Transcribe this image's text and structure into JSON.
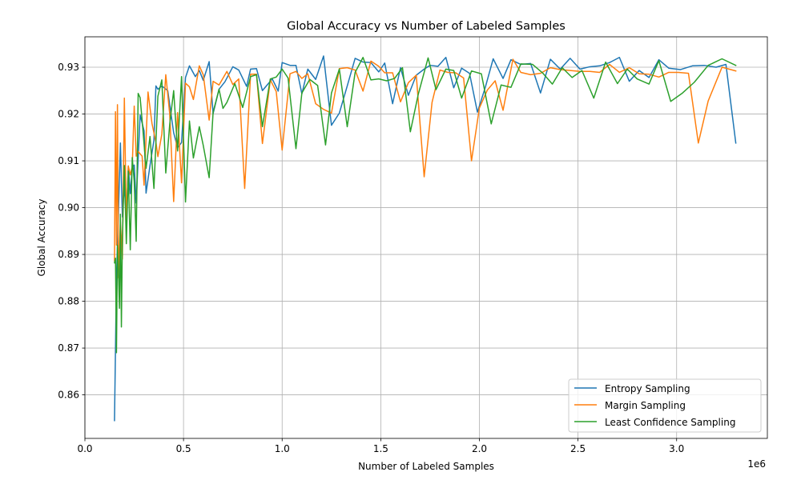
{
  "chart_data": {
    "type": "line",
    "title": "Global Accuracy vs Number of Labeled Samples",
    "xlabel": "Number of Labeled Samples",
    "ylabel": "Global Accuracy",
    "x_multiplier_label": "1e6",
    "xlim": [
      0,
      3.46
    ],
    "ylim": [
      0.8507,
      0.9365
    ],
    "x_ticks": [
      0.0,
      0.5,
      1.0,
      1.5,
      2.0,
      2.5,
      3.0
    ],
    "x_tick_labels": [
      "0.0",
      "0.5",
      "1.0",
      "1.5",
      "2.0",
      "2.5",
      "3.0"
    ],
    "y_ticks": [
      0.86,
      0.87,
      0.88,
      0.89,
      0.9,
      0.91,
      0.92,
      0.93
    ],
    "y_tick_labels": [
      "0.86",
      "0.87",
      "0.88",
      "0.89",
      "0.90",
      "0.91",
      "0.92",
      "0.93"
    ],
    "grid": true,
    "legend_position": "lower-right",
    "series": [
      {
        "name": "Entropy Sampling",
        "color": "#1f77b4",
        "points": [
          [
            0.15,
            0.8545
          ],
          [
            0.16,
            0.885
          ],
          [
            0.17,
            0.899
          ],
          [
            0.18,
            0.9138
          ],
          [
            0.19,
            0.898
          ],
          [
            0.2,
            0.9048
          ],
          [
            0.21,
            0.897
          ],
          [
            0.22,
            0.9089
          ],
          [
            0.23,
            0.903
          ],
          [
            0.24,
            0.9086
          ],
          [
            0.25,
            0.9091
          ],
          [
            0.26,
            0.901
          ],
          [
            0.28,
            0.9198
          ],
          [
            0.3,
            0.9164
          ],
          [
            0.31,
            0.9031
          ],
          [
            0.33,
            0.909
          ],
          [
            0.35,
            0.9144
          ],
          [
            0.36,
            0.926
          ],
          [
            0.37,
            0.9253
          ],
          [
            0.39,
            0.926
          ],
          [
            0.42,
            0.925
          ],
          [
            0.45,
            0.916
          ],
          [
            0.47,
            0.9128
          ],
          [
            0.49,
            0.9139
          ],
          [
            0.51,
            0.9278
          ],
          [
            0.53,
            0.9303
          ],
          [
            0.56,
            0.928
          ],
          [
            0.58,
            0.9293
          ],
          [
            0.6,
            0.9272
          ],
          [
            0.63,
            0.9312
          ],
          [
            0.65,
            0.9201
          ],
          [
            0.68,
            0.9253
          ],
          [
            0.71,
            0.9269
          ],
          [
            0.75,
            0.9301
          ],
          [
            0.78,
            0.9294
          ],
          [
            0.82,
            0.9259
          ],
          [
            0.84,
            0.9296
          ],
          [
            0.87,
            0.9297
          ],
          [
            0.9,
            0.925
          ],
          [
            0.95,
            0.9275
          ],
          [
            0.98,
            0.9249
          ],
          [
            1.0,
            0.931
          ],
          [
            1.04,
            0.9304
          ],
          [
            1.07,
            0.9304
          ],
          [
            1.1,
            0.9243
          ],
          [
            1.13,
            0.9296
          ],
          [
            1.17,
            0.9274
          ],
          [
            1.21,
            0.9324
          ],
          [
            1.25,
            0.9176
          ],
          [
            1.29,
            0.9202
          ],
          [
            1.33,
            0.926
          ],
          [
            1.37,
            0.9319
          ],
          [
            1.41,
            0.9311
          ],
          [
            1.45,
            0.931
          ],
          [
            1.49,
            0.929
          ],
          [
            1.52,
            0.9309
          ],
          [
            1.56,
            0.9222
          ],
          [
            1.6,
            0.9299
          ],
          [
            1.64,
            0.924
          ],
          [
            1.68,
            0.9283
          ],
          [
            1.72,
            0.9296
          ],
          [
            1.75,
            0.9304
          ],
          [
            1.79,
            0.9302
          ],
          [
            1.83,
            0.9321
          ],
          [
            1.87,
            0.9256
          ],
          [
            1.91,
            0.9298
          ],
          [
            1.95,
            0.9287
          ],
          [
            1.99,
            0.9204
          ],
          [
            2.03,
            0.9257
          ],
          [
            2.07,
            0.9318
          ],
          [
            2.12,
            0.9276
          ],
          [
            2.16,
            0.9316
          ],
          [
            2.21,
            0.9306
          ],
          [
            2.26,
            0.9308
          ],
          [
            2.31,
            0.9245
          ],
          [
            2.36,
            0.9317
          ],
          [
            2.41,
            0.9296
          ],
          [
            2.46,
            0.9319
          ],
          [
            2.51,
            0.9296
          ],
          [
            2.56,
            0.9301
          ],
          [
            2.61,
            0.9303
          ],
          [
            2.66,
            0.931
          ],
          [
            2.71,
            0.9321
          ],
          [
            2.76,
            0.927
          ],
          [
            2.81,
            0.9293
          ],
          [
            2.86,
            0.9278
          ],
          [
            2.91,
            0.9316
          ],
          [
            2.96,
            0.9298
          ],
          [
            3.02,
            0.9295
          ],
          [
            3.08,
            0.9303
          ],
          [
            3.14,
            0.9304
          ],
          [
            3.2,
            0.93
          ],
          [
            3.25,
            0.9306
          ],
          [
            3.3,
            0.9138
          ]
        ]
      },
      {
        "name": "Margin Sampling",
        "color": "#ff7f0e",
        "points": [
          [
            0.15,
            0.8886
          ],
          [
            0.155,
            0.9205
          ],
          [
            0.16,
            0.892
          ],
          [
            0.165,
            0.922
          ],
          [
            0.17,
            0.885
          ],
          [
            0.18,
            0.897
          ],
          [
            0.19,
            0.889
          ],
          [
            0.2,
            0.9234
          ],
          [
            0.21,
            0.897
          ],
          [
            0.22,
            0.9089
          ],
          [
            0.23,
            0.907
          ],
          [
            0.24,
            0.9088
          ],
          [
            0.25,
            0.9217
          ],
          [
            0.26,
            0.911
          ],
          [
            0.27,
            0.912
          ],
          [
            0.29,
            0.911
          ],
          [
            0.3,
            0.9048
          ],
          [
            0.32,
            0.9247
          ],
          [
            0.34,
            0.918
          ],
          [
            0.36,
            0.914
          ],
          [
            0.37,
            0.9109
          ],
          [
            0.39,
            0.9157
          ],
          [
            0.41,
            0.9284
          ],
          [
            0.43,
            0.92
          ],
          [
            0.45,
            0.9013
          ],
          [
            0.47,
            0.9203
          ],
          [
            0.49,
            0.9053
          ],
          [
            0.51,
            0.9266
          ],
          [
            0.53,
            0.9258
          ],
          [
            0.55,
            0.9231
          ],
          [
            0.58,
            0.9303
          ],
          [
            0.6,
            0.9284
          ],
          [
            0.63,
            0.9187
          ],
          [
            0.65,
            0.927
          ],
          [
            0.68,
            0.9262
          ],
          [
            0.72,
            0.9291
          ],
          [
            0.75,
            0.9263
          ],
          [
            0.78,
            0.9275
          ],
          [
            0.81,
            0.9041
          ],
          [
            0.84,
            0.9285
          ],
          [
            0.87,
            0.9285
          ],
          [
            0.9,
            0.9137
          ],
          [
            0.94,
            0.9273
          ],
          [
            0.97,
            0.9248
          ],
          [
            1.0,
            0.9123
          ],
          [
            1.04,
            0.9286
          ],
          [
            1.07,
            0.9291
          ],
          [
            1.1,
            0.9276
          ],
          [
            1.13,
            0.9286
          ],
          [
            1.17,
            0.9222
          ],
          [
            1.21,
            0.921
          ],
          [
            1.25,
            0.9202
          ],
          [
            1.29,
            0.9297
          ],
          [
            1.33,
            0.9299
          ],
          [
            1.37,
            0.9294
          ],
          [
            1.41,
            0.9249
          ],
          [
            1.45,
            0.9313
          ],
          [
            1.49,
            0.9302
          ],
          [
            1.52,
            0.9288
          ],
          [
            1.56,
            0.9288
          ],
          [
            1.6,
            0.9226
          ],
          [
            1.64,
            0.9267
          ],
          [
            1.68,
            0.9283
          ],
          [
            1.72,
            0.9066
          ],
          [
            1.76,
            0.9225
          ],
          [
            1.8,
            0.9294
          ],
          [
            1.84,
            0.9289
          ],
          [
            1.88,
            0.9288
          ],
          [
            1.92,
            0.9277
          ],
          [
            1.96,
            0.91
          ],
          [
            2.0,
            0.9213
          ],
          [
            2.04,
            0.9251
          ],
          [
            2.08,
            0.9271
          ],
          [
            2.12,
            0.9208
          ],
          [
            2.17,
            0.9317
          ],
          [
            2.21,
            0.9289
          ],
          [
            2.26,
            0.9284
          ],
          [
            2.31,
            0.9287
          ],
          [
            2.36,
            0.9299
          ],
          [
            2.41,
            0.9295
          ],
          [
            2.46,
            0.9293
          ],
          [
            2.51,
            0.9291
          ],
          [
            2.56,
            0.9291
          ],
          [
            2.61,
            0.9289
          ],
          [
            2.66,
            0.9306
          ],
          [
            2.71,
            0.9289
          ],
          [
            2.76,
            0.9299
          ],
          [
            2.81,
            0.9286
          ],
          [
            2.86,
            0.9285
          ],
          [
            2.91,
            0.9279
          ],
          [
            2.96,
            0.9289
          ],
          [
            3.01,
            0.9289
          ],
          [
            3.06,
            0.9287
          ],
          [
            3.11,
            0.9138
          ],
          [
            3.16,
            0.9228
          ],
          [
            3.23,
            0.93
          ],
          [
            3.3,
            0.9292
          ]
        ]
      },
      {
        "name": "Least Confidence Sampling",
        "color": "#2ca02c",
        "points": [
          [
            0.15,
            0.8882
          ],
          [
            0.155,
            0.8892
          ],
          [
            0.16,
            0.869
          ],
          [
            0.165,
            0.892
          ],
          [
            0.17,
            0.8865
          ],
          [
            0.175,
            0.8785
          ],
          [
            0.18,
            0.8986
          ],
          [
            0.185,
            0.8745
          ],
          [
            0.19,
            0.8935
          ],
          [
            0.2,
            0.909
          ],
          [
            0.21,
            0.8923
          ],
          [
            0.22,
            0.9078
          ],
          [
            0.23,
            0.891
          ],
          [
            0.24,
            0.9107
          ],
          [
            0.25,
            0.9056
          ],
          [
            0.26,
            0.8928
          ],
          [
            0.27,
            0.9244
          ],
          [
            0.28,
            0.9235
          ],
          [
            0.29,
            0.9187
          ],
          [
            0.31,
            0.9084
          ],
          [
            0.33,
            0.9152
          ],
          [
            0.35,
            0.9041
          ],
          [
            0.37,
            0.9238
          ],
          [
            0.39,
            0.9273
          ],
          [
            0.41,
            0.9074
          ],
          [
            0.43,
            0.9178
          ],
          [
            0.45,
            0.925
          ],
          [
            0.47,
            0.9121
          ],
          [
            0.49,
            0.928
          ],
          [
            0.51,
            0.9012
          ],
          [
            0.53,
            0.9185
          ],
          [
            0.55,
            0.9106
          ],
          [
            0.58,
            0.9173
          ],
          [
            0.6,
            0.9133
          ],
          [
            0.63,
            0.9064
          ],
          [
            0.65,
            0.9204
          ],
          [
            0.68,
            0.9253
          ],
          [
            0.7,
            0.9212
          ],
          [
            0.72,
            0.9225
          ],
          [
            0.76,
            0.9265
          ],
          [
            0.8,
            0.9214
          ],
          [
            0.84,
            0.928
          ],
          [
            0.87,
            0.9284
          ],
          [
            0.9,
            0.9173
          ],
          [
            0.94,
            0.9275
          ],
          [
            0.97,
            0.9279
          ],
          [
            1.0,
            0.9296
          ],
          [
            1.03,
            0.9277
          ],
          [
            1.07,
            0.9126
          ],
          [
            1.1,
            0.9245
          ],
          [
            1.14,
            0.9274
          ],
          [
            1.18,
            0.9261
          ],
          [
            1.22,
            0.9134
          ],
          [
            1.25,
            0.9245
          ],
          [
            1.29,
            0.9296
          ],
          [
            1.33,
            0.9173
          ],
          [
            1.37,
            0.9289
          ],
          [
            1.41,
            0.9321
          ],
          [
            1.45,
            0.9273
          ],
          [
            1.49,
            0.9275
          ],
          [
            1.53,
            0.9271
          ],
          [
            1.57,
            0.9276
          ],
          [
            1.61,
            0.9299
          ],
          [
            1.65,
            0.9162
          ],
          [
            1.69,
            0.9242
          ],
          [
            1.74,
            0.932
          ],
          [
            1.78,
            0.9252
          ],
          [
            1.83,
            0.9296
          ],
          [
            1.87,
            0.9293
          ],
          [
            1.91,
            0.9234
          ],
          [
            1.96,
            0.9292
          ],
          [
            2.01,
            0.9286
          ],
          [
            2.06,
            0.9179
          ],
          [
            2.11,
            0.9262
          ],
          [
            2.16,
            0.9257
          ],
          [
            2.21,
            0.9307
          ],
          [
            2.27,
            0.9306
          ],
          [
            2.32,
            0.9288
          ],
          [
            2.37,
            0.9264
          ],
          [
            2.42,
            0.9299
          ],
          [
            2.47,
            0.9278
          ],
          [
            2.52,
            0.9293
          ],
          [
            2.58,
            0.9234
          ],
          [
            2.64,
            0.9311
          ],
          [
            2.7,
            0.9265
          ],
          [
            2.75,
            0.9296
          ],
          [
            2.8,
            0.9275
          ],
          [
            2.86,
            0.9264
          ],
          [
            2.91,
            0.9314
          ],
          [
            2.97,
            0.9227
          ],
          [
            3.03,
            0.9245
          ],
          [
            3.09,
            0.9268
          ],
          [
            3.16,
            0.9304
          ],
          [
            3.23,
            0.9318
          ],
          [
            3.3,
            0.9304
          ]
        ]
      }
    ]
  }
}
